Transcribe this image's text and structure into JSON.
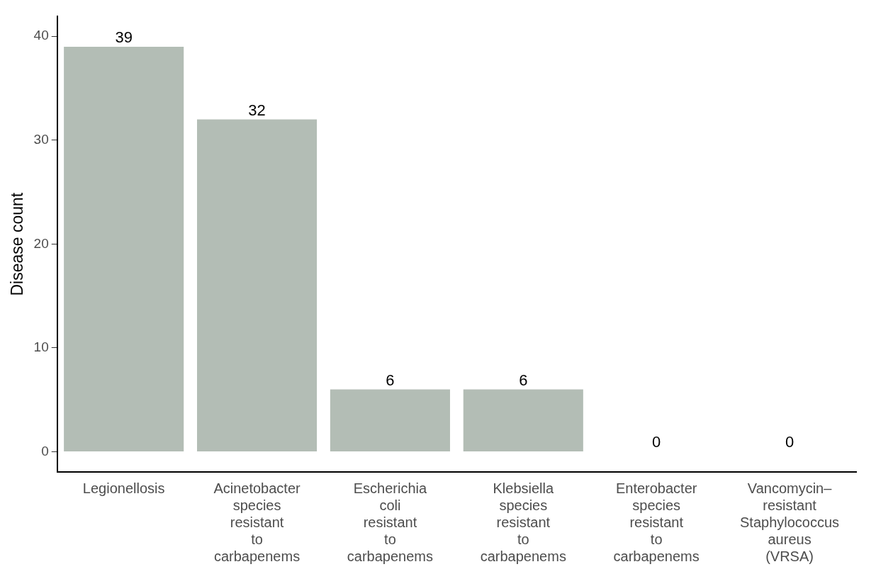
{
  "chart_data": {
    "type": "bar",
    "ylabel": "Disease count",
    "categories": [
      "Legionellosis",
      "Acinetobacter species resistant to carbapenems",
      "Escherichia coli resistant to carbapenems",
      "Klebsiella species resistant to carbapenems",
      "Enterobacter species resistant to carbapenems",
      "Vancomycin–resistant Staphylococcus aureus (VRSA)"
    ],
    "values": [
      39,
      32,
      6,
      6,
      0,
      0
    ],
    "color": "#b3bdb5",
    "ylim": [
      -1.95,
      41.9
    ],
    "yticks": [
      0,
      10,
      20,
      30,
      40
    ],
    "grid": false,
    "legend": false,
    "data_labels": true
  }
}
